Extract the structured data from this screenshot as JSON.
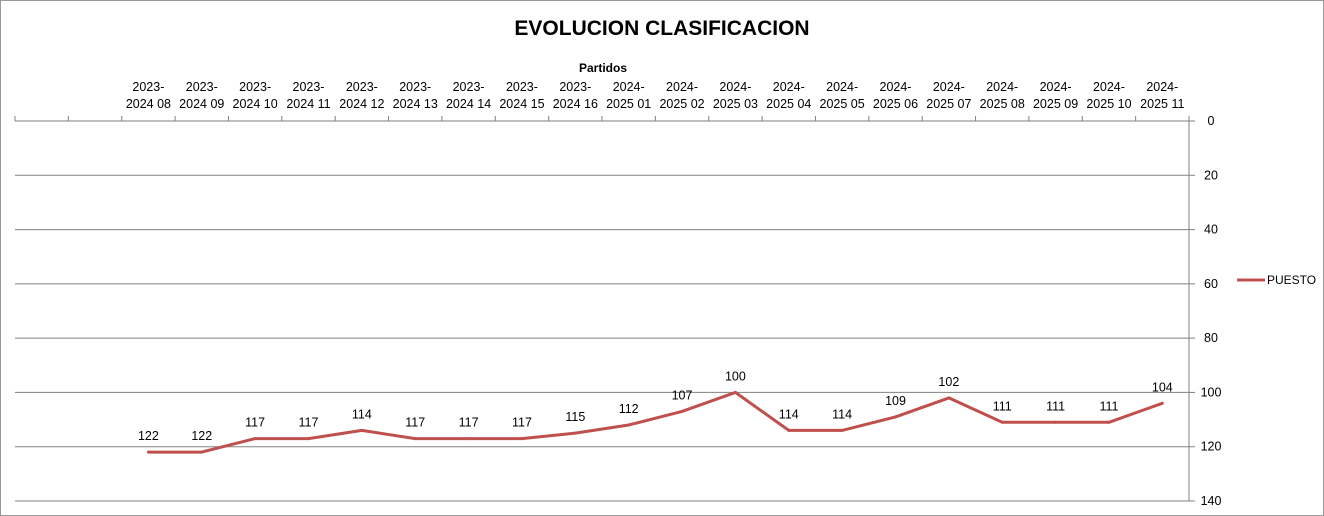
{
  "chart_data": {
    "type": "line",
    "title": "EVOLUCION CLASIFICACION",
    "xlabel": "Partidos",
    "ylabel": "",
    "categories": [
      "",
      "",
      "2023-\n2024 08",
      "2023-\n2024 09",
      "2023-\n2024 10",
      "2023-\n2024 11",
      "2023-\n2024 12",
      "2023-\n2024 13",
      "2023-\n2024 14",
      "2023-\n2024 15",
      "2023-\n2024 16",
      "2024-\n2025 01",
      "2024-\n2025 02",
      "2024-\n2025 03",
      "2024-\n2025 04",
      "2024-\n2025 05",
      "2024-\n2025 06",
      "2024-\n2025 07",
      "2024-\n2025 08",
      "2024-\n2025 09",
      "2024-\n2025 10",
      "2024-\n2025 11"
    ],
    "series": [
      {
        "name": "PUESTO",
        "color": "#c0504d",
        "values": [
          null,
          null,
          122,
          122,
          117,
          117,
          114,
          117,
          117,
          117,
          115,
          112,
          107,
          100,
          114,
          114,
          109,
          102,
          111,
          111,
          111,
          104
        ]
      }
    ],
    "ylim": [
      0,
      140
    ],
    "y_reversed": true,
    "y_axis_side": "right",
    "x_axis_side": "top",
    "yticks": [
      "0",
      "20",
      "40",
      "60",
      "80",
      "100",
      "120",
      "140"
    ],
    "grid": true,
    "legend": "right"
  }
}
